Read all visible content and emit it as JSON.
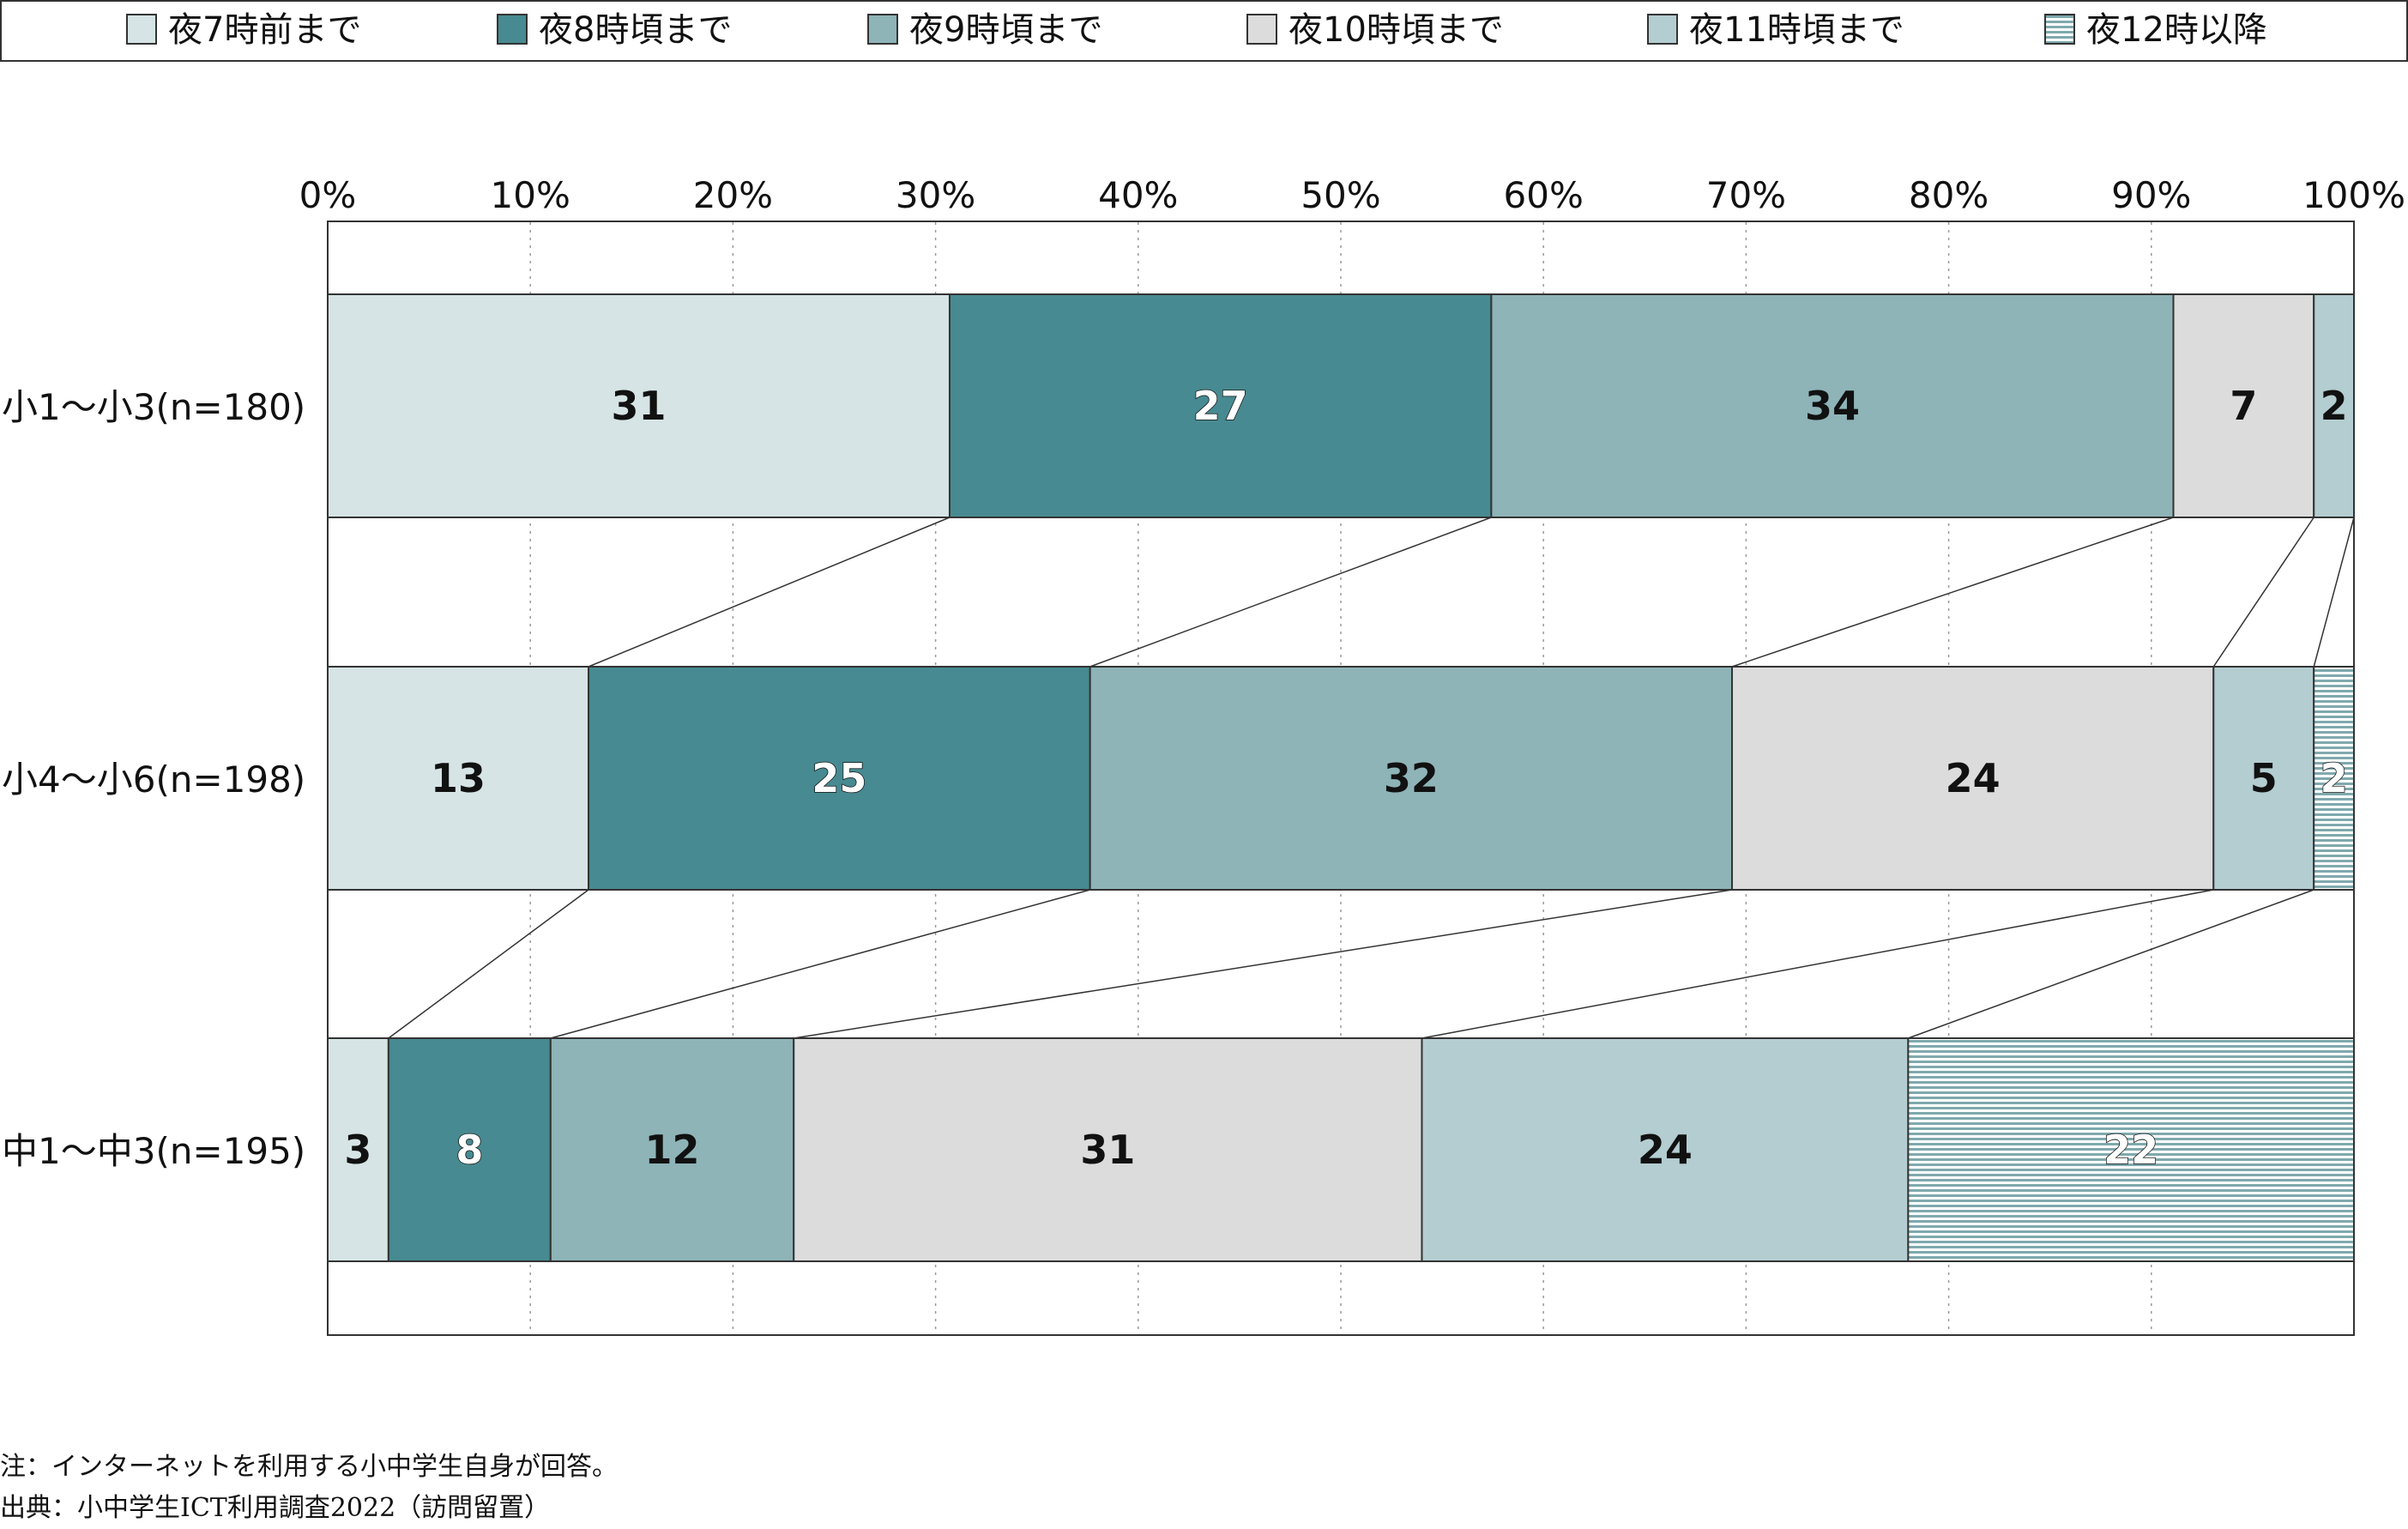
{
  "chart_data": {
    "type": "bar",
    "orientation": "horizontal",
    "stacked": "percent",
    "legend_position": "top",
    "xlim": [
      0,
      100
    ],
    "x_ticks": [
      "0%",
      "10%",
      "20%",
      "30%",
      "40%",
      "50%",
      "60%",
      "70%",
      "80%",
      "90%",
      "100%"
    ],
    "categories": [
      "小1～小3(n=180)",
      "小4～小6(n=198)",
      "中1～中3(n=195)"
    ],
    "series": [
      {
        "name": "夜7時前まで",
        "values": [
          31,
          13,
          3
        ],
        "color": "#d6e4e5",
        "pattern": "none"
      },
      {
        "name": "夜8時頃まで",
        "values": [
          27,
          25,
          8
        ],
        "color": "#478a91",
        "pattern": "none"
      },
      {
        "name": "夜9時頃まで",
        "values": [
          34,
          32,
          12
        ],
        "color": "#8eb4b8",
        "pattern": "none"
      },
      {
        "name": "夜10時頃まで",
        "values": [
          7,
          24,
          31
        ],
        "color": "#dcdcdc",
        "pattern": "none"
      },
      {
        "name": "夜11時頃まで",
        "values": [
          2,
          5,
          24
        ],
        "color": "#b3cdd1",
        "pattern": "none"
      },
      {
        "name": "夜12時以降",
        "values": [
          0,
          2,
          22
        ],
        "color": "#7fa9ad",
        "pattern": "horizontal-lines"
      }
    ],
    "grid": true,
    "series_connector_lines": true
  },
  "notes": {
    "note": "注：インターネットを利用する小中学生自身が回答。",
    "source": "出典：小中学生ICT利用調査2022（訪問留置）"
  }
}
